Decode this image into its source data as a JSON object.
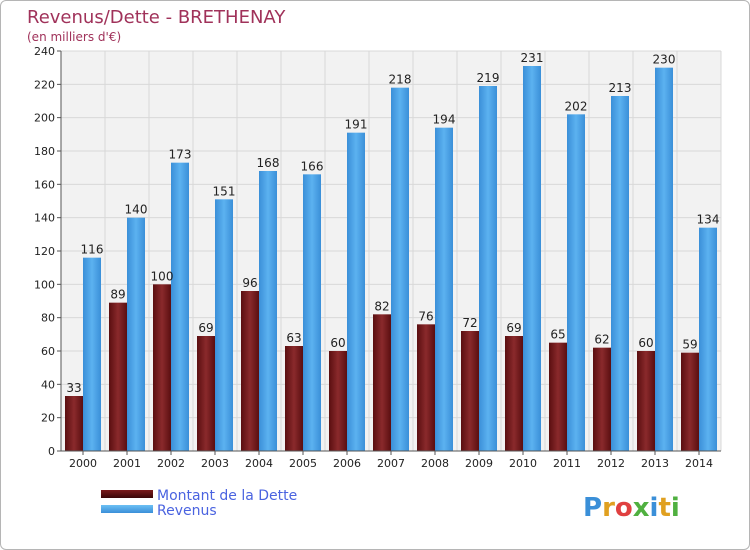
{
  "chart_data": {
    "type": "bar",
    "title": "Revenus/Dette - BRETHENAY",
    "subtitle": "(en milliers d'€)",
    "categories": [
      "2000",
      "2001",
      "2002",
      "2003",
      "2004",
      "2005",
      "2006",
      "2007",
      "2008",
      "2009",
      "2010",
      "2011",
      "2012",
      "2013",
      "2014"
    ],
    "series": [
      {
        "name": "Montant de la Dette",
        "color": "#7a1a1c",
        "values": [
          33,
          89,
          100,
          69,
          96,
          63,
          60,
          82,
          76,
          72,
          69,
          65,
          62,
          60,
          59
        ]
      },
      {
        "name": "Revenus",
        "color": "#4aa3e6",
        "values": [
          116,
          140,
          173,
          151,
          168,
          166,
          191,
          218,
          194,
          219,
          231,
          202,
          213,
          230,
          134
        ]
      }
    ],
    "ylim": [
      0,
      240
    ],
    "yticks": [
      0,
      20,
      40,
      60,
      80,
      100,
      120,
      140,
      160,
      180,
      200,
      220,
      240
    ],
    "grid": true,
    "legend": "bottom-left",
    "xlabel": "",
    "ylabel": ""
  },
  "logo": {
    "letters": [
      "P",
      "r",
      "o",
      "x",
      "i",
      "t",
      "i"
    ],
    "colors": [
      "#3a8fd8",
      "#e0a020",
      "#e04040",
      "#50b040",
      "#3a8fd8",
      "#e0a020",
      "#50b040"
    ]
  }
}
